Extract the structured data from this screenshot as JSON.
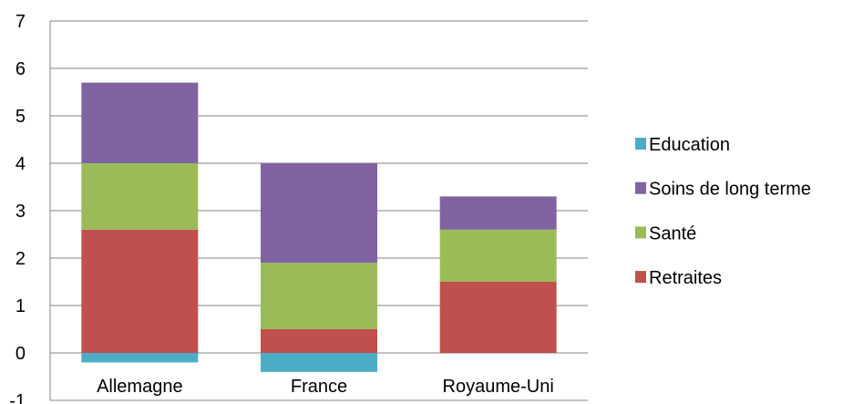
{
  "chart_data": {
    "type": "bar",
    "stacked": true,
    "categories": [
      "Allemagne",
      "France",
      "Royaume-Uni"
    ],
    "series": [
      {
        "name": "Retraites",
        "color": "#C0504D",
        "values": [
          2.6,
          0.5,
          1.5
        ]
      },
      {
        "name": "Santé",
        "color": "#9BBB59",
        "values": [
          1.4,
          1.4,
          1.1
        ]
      },
      {
        "name": "Soins de long terme",
        "color": "#8064A2",
        "values": [
          1.7,
          2.1,
          0.7
        ]
      },
      {
        "name": "Education",
        "color": "#4BACC6",
        "values": [
          -0.2,
          -0.4,
          0.0
        ]
      }
    ],
    "legend_order": [
      "Education",
      "Soins de long terme",
      "Santé",
      "Retraites"
    ],
    "legend_position": "right",
    "ylim": [
      -1,
      7
    ],
    "yticks": [
      "-1",
      "0",
      "1",
      "2",
      "3",
      "4",
      "5",
      "6",
      "7"
    ],
    "grid": true,
    "title": "",
    "xlabel": "",
    "ylabel": ""
  }
}
